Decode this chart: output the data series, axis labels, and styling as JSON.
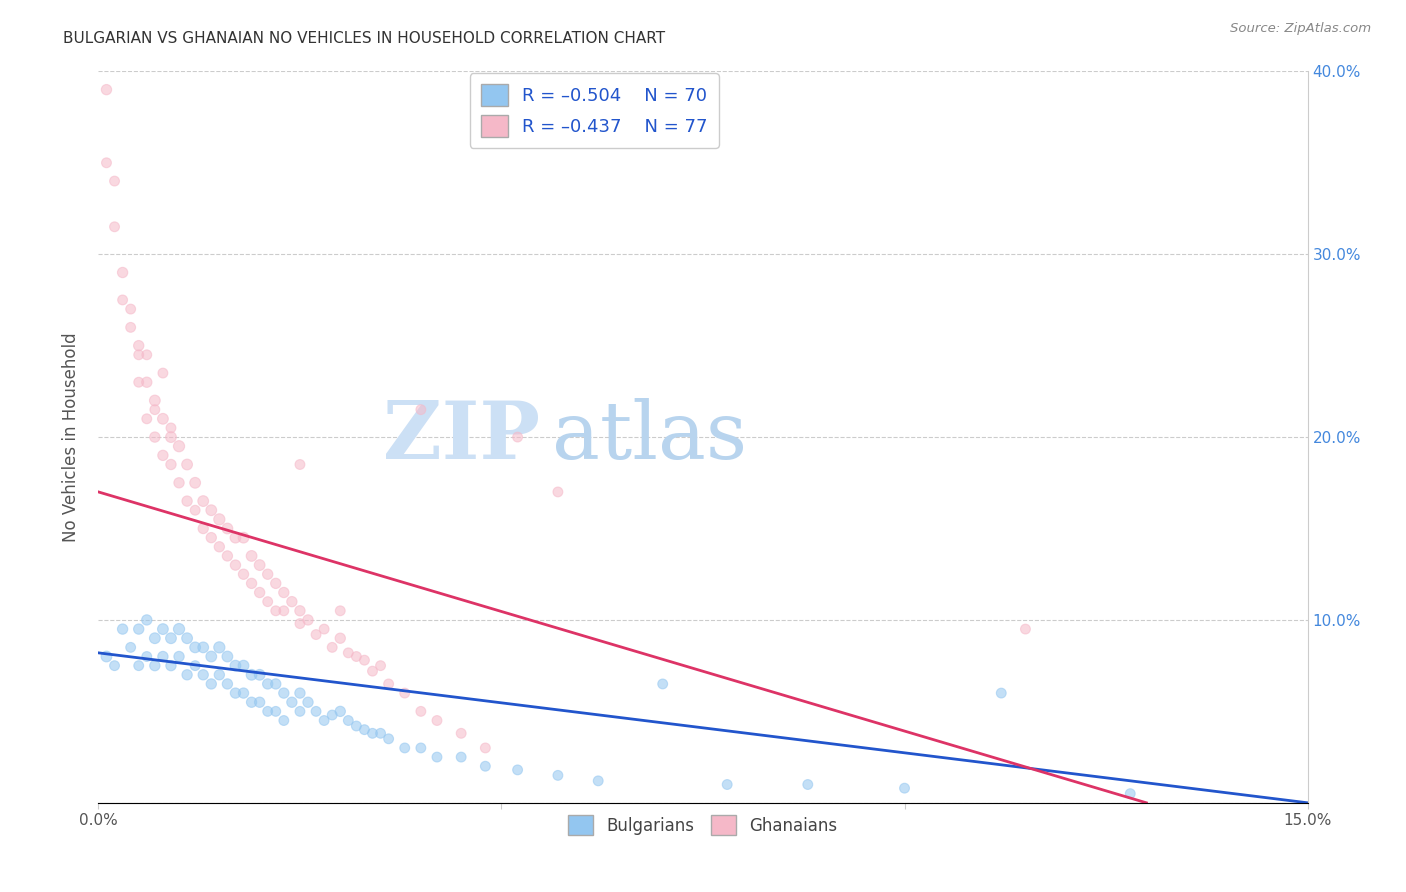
{
  "title": "BULGARIAN VS GHANAIAN NO VEHICLES IN HOUSEHOLD CORRELATION CHART",
  "source": "Source: ZipAtlas.com",
  "ylabel": "No Vehicles in Household",
  "xlim": [
    0.0,
    0.15
  ],
  "ylim": [
    0.0,
    0.4
  ],
  "color_blue": "#93c6f0",
  "color_pink": "#f5b8c8",
  "color_blue_line": "#2255cc",
  "color_pink_line": "#dd3366",
  "color_legend_text": "#2255cc",
  "color_axis_right": "#4488dd",
  "background_color": "#ffffff",
  "watermark_zip": "ZIP",
  "watermark_atlas": "atlas",
  "watermark_color_zip": "#c8ddf5",
  "watermark_color_atlas": "#b0cce8",
  "bulgarians_x": [
    0.001,
    0.002,
    0.003,
    0.004,
    0.005,
    0.005,
    0.006,
    0.006,
    0.007,
    0.007,
    0.008,
    0.008,
    0.009,
    0.009,
    0.01,
    0.01,
    0.011,
    0.011,
    0.012,
    0.012,
    0.013,
    0.013,
    0.014,
    0.014,
    0.015,
    0.015,
    0.016,
    0.016,
    0.017,
    0.017,
    0.018,
    0.018,
    0.019,
    0.019,
    0.02,
    0.02,
    0.021,
    0.021,
    0.022,
    0.022,
    0.023,
    0.023,
    0.024,
    0.025,
    0.025,
    0.026,
    0.027,
    0.028,
    0.029,
    0.03,
    0.031,
    0.032,
    0.033,
    0.034,
    0.035,
    0.036,
    0.038,
    0.04,
    0.042,
    0.045,
    0.048,
    0.052,
    0.057,
    0.062,
    0.07,
    0.078,
    0.088,
    0.1,
    0.112,
    0.128
  ],
  "bulgarians_y": [
    0.08,
    0.075,
    0.095,
    0.085,
    0.095,
    0.075,
    0.1,
    0.08,
    0.09,
    0.075,
    0.095,
    0.08,
    0.09,
    0.075,
    0.095,
    0.08,
    0.09,
    0.07,
    0.085,
    0.075,
    0.085,
    0.07,
    0.08,
    0.065,
    0.085,
    0.07,
    0.08,
    0.065,
    0.075,
    0.06,
    0.075,
    0.06,
    0.07,
    0.055,
    0.07,
    0.055,
    0.065,
    0.05,
    0.065,
    0.05,
    0.06,
    0.045,
    0.055,
    0.06,
    0.05,
    0.055,
    0.05,
    0.045,
    0.048,
    0.05,
    0.045,
    0.042,
    0.04,
    0.038,
    0.038,
    0.035,
    0.03,
    0.03,
    0.025,
    0.025,
    0.02,
    0.018,
    0.015,
    0.012,
    0.065,
    0.01,
    0.01,
    0.008,
    0.06,
    0.005
  ],
  "bulgarians_size": [
    60,
    50,
    55,
    50,
    55,
    50,
    55,
    50,
    60,
    55,
    60,
    55,
    60,
    55,
    65,
    55,
    60,
    55,
    60,
    50,
    60,
    55,
    60,
    55,
    65,
    55,
    60,
    55,
    60,
    55,
    60,
    55,
    60,
    55,
    60,
    55,
    55,
    50,
    55,
    50,
    55,
    50,
    55,
    55,
    50,
    55,
    50,
    50,
    50,
    55,
    50,
    50,
    50,
    50,
    50,
    50,
    50,
    50,
    50,
    50,
    50,
    50,
    50,
    50,
    50,
    50,
    50,
    50,
    50,
    50
  ],
  "ghanaians_x": [
    0.001,
    0.002,
    0.003,
    0.004,
    0.005,
    0.005,
    0.006,
    0.006,
    0.007,
    0.007,
    0.008,
    0.008,
    0.009,
    0.009,
    0.01,
    0.01,
    0.011,
    0.011,
    0.012,
    0.012,
    0.013,
    0.013,
    0.014,
    0.014,
    0.015,
    0.015,
    0.016,
    0.016,
    0.017,
    0.017,
    0.018,
    0.018,
    0.019,
    0.019,
    0.02,
    0.02,
    0.021,
    0.021,
    0.022,
    0.022,
    0.023,
    0.023,
    0.024,
    0.025,
    0.025,
    0.026,
    0.027,
    0.028,
    0.029,
    0.03,
    0.031,
    0.032,
    0.033,
    0.034,
    0.035,
    0.036,
    0.038,
    0.04,
    0.042,
    0.045,
    0.0,
    0.001,
    0.002,
    0.003,
    0.004,
    0.005,
    0.006,
    0.007,
    0.008,
    0.009,
    0.048,
    0.052,
    0.057,
    0.04,
    0.115,
    0.025,
    0.03
  ],
  "ghanaians_y": [
    0.39,
    0.34,
    0.29,
    0.27,
    0.25,
    0.23,
    0.23,
    0.21,
    0.22,
    0.2,
    0.21,
    0.19,
    0.2,
    0.185,
    0.195,
    0.175,
    0.185,
    0.165,
    0.175,
    0.16,
    0.165,
    0.15,
    0.16,
    0.145,
    0.155,
    0.14,
    0.15,
    0.135,
    0.145,
    0.13,
    0.145,
    0.125,
    0.135,
    0.12,
    0.13,
    0.115,
    0.125,
    0.11,
    0.12,
    0.105,
    0.115,
    0.105,
    0.11,
    0.105,
    0.098,
    0.1,
    0.092,
    0.095,
    0.085,
    0.09,
    0.082,
    0.08,
    0.078,
    0.072,
    0.075,
    0.065,
    0.06,
    0.05,
    0.045,
    0.038,
    0.41,
    0.35,
    0.315,
    0.275,
    0.26,
    0.245,
    0.245,
    0.215,
    0.235,
    0.205,
    0.03,
    0.2,
    0.17,
    0.215,
    0.095,
    0.185,
    0.105
  ],
  "ghanaians_size": [
    55,
    50,
    55,
    50,
    55,
    50,
    55,
    50,
    60,
    55,
    60,
    55,
    60,
    55,
    65,
    55,
    60,
    55,
    60,
    50,
    60,
    55,
    60,
    55,
    65,
    55,
    60,
    55,
    60,
    55,
    60,
    55,
    60,
    55,
    60,
    55,
    55,
    50,
    55,
    50,
    55,
    50,
    55,
    55,
    50,
    55,
    50,
    50,
    50,
    55,
    50,
    50,
    50,
    50,
    50,
    50,
    50,
    50,
    50,
    50,
    50,
    50,
    50,
    50,
    50,
    50,
    50,
    50,
    50,
    50,
    50,
    50,
    50,
    50,
    50,
    50,
    50
  ]
}
